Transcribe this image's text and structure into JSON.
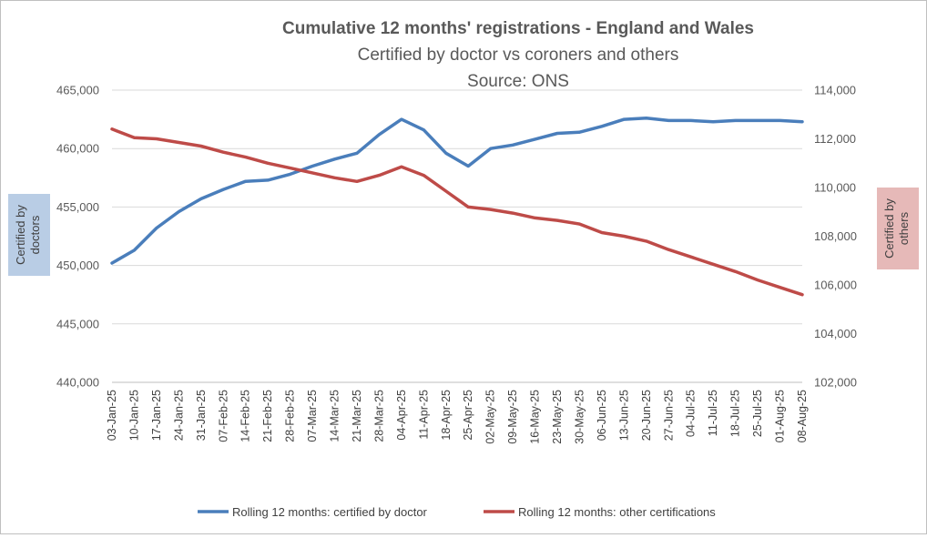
{
  "chart_data": {
    "type": "line",
    "title": "Cumulative 12 months' registrations - England and Wales",
    "subtitle": "Certified by doctor vs coroners and others",
    "source": "Source: ONS",
    "categories": [
      "03-Jan-25",
      "10-Jan-25",
      "17-Jan-25",
      "24-Jan-25",
      "31-Jan-25",
      "07-Feb-25",
      "14-Feb-25",
      "21-Feb-25",
      "28-Feb-25",
      "07-Mar-25",
      "14-Mar-25",
      "21-Mar-25",
      "28-Mar-25",
      "04-Apr-25",
      "11-Apr-25",
      "18-Apr-25",
      "25-Apr-25",
      "02-May-25",
      "09-May-25",
      "16-May-25",
      "23-May-25",
      "30-May-25",
      "06-Jun-25",
      "13-Jun-25",
      "20-Jun-25",
      "27-Jun-25",
      "04-Jul-25",
      "11-Jul-25",
      "18-Jul-25",
      "25-Jul-25",
      "01-Aug-25",
      "08-Aug-25"
    ],
    "series": [
      {
        "name": "Rolling 12 months: certified by doctor",
        "axis": "left",
        "color": "#4a7ebb",
        "values": [
          450200,
          451300,
          453200,
          454600,
          455700,
          456500,
          457200,
          457300,
          457800,
          458500,
          459100,
          459600,
          461200,
          462500,
          461600,
          459600,
          458500,
          460000,
          460300,
          460800,
          461300,
          461400,
          461900,
          462500,
          462600,
          462400,
          462400,
          462300,
          462400,
          462400,
          462400,
          462300
        ]
      },
      {
        "name": "Rolling 12 months: other certifications",
        "axis": "right",
        "color": "#be4b48",
        "values": [
          112400,
          112050,
          112000,
          111850,
          111700,
          111450,
          111250,
          111000,
          110800,
          110600,
          110400,
          110250,
          110500,
          110850,
          110500,
          109850,
          109200,
          109100,
          108950,
          108750,
          108650,
          108500,
          108150,
          108000,
          107800,
          107450,
          107150,
          106850,
          106550,
          106200,
          105900,
          105600
        ]
      }
    ],
    "y_left": {
      "label": "Certified by doctors",
      "min": 440000,
      "max": 465000,
      "step": 5000,
      "tick_labels": [
        "440,000",
        "445,000",
        "450,000",
        "455,000",
        "460,000",
        "465,000"
      ]
    },
    "y_right": {
      "label": "Certified by others",
      "min": 102000,
      "max": 114000,
      "step": 2000,
      "tick_labels": [
        "102,000",
        "104,000",
        "106,000",
        "108,000",
        "110,000",
        "112,000",
        "114,000"
      ]
    },
    "grid": true,
    "legend_position": "bottom",
    "colors": {
      "left_label_bg": "#b9cde5",
      "right_label_bg": "#e6b9b8",
      "grid": "#d9d9d9"
    }
  }
}
